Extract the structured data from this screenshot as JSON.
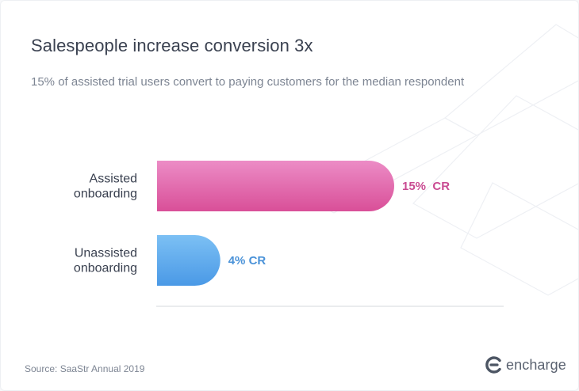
{
  "title": "Salespeople increase conversion 3x",
  "subtitle": "15% of assisted trial users convert to paying customers for the median respondent",
  "chart_data": {
    "type": "bar",
    "orientation": "horizontal",
    "categories": [
      [
        "Assisted",
        "onboarding"
      ],
      [
        "Unassisted",
        "onboarding"
      ]
    ],
    "values": [
      15,
      4
    ],
    "value_labels": [
      "15%  CR",
      "4% CR"
    ],
    "colors": [
      "#dd4f9d",
      "#4f9de8"
    ],
    "label_colors": [
      "#c94b92",
      "#4a92d8"
    ],
    "xlim": [
      0,
      15
    ],
    "unit": "%",
    "grid": false,
    "legend": "none"
  },
  "footer": {
    "source": "Source: SaaStr Annual 2019",
    "logo_text": "encharge"
  }
}
